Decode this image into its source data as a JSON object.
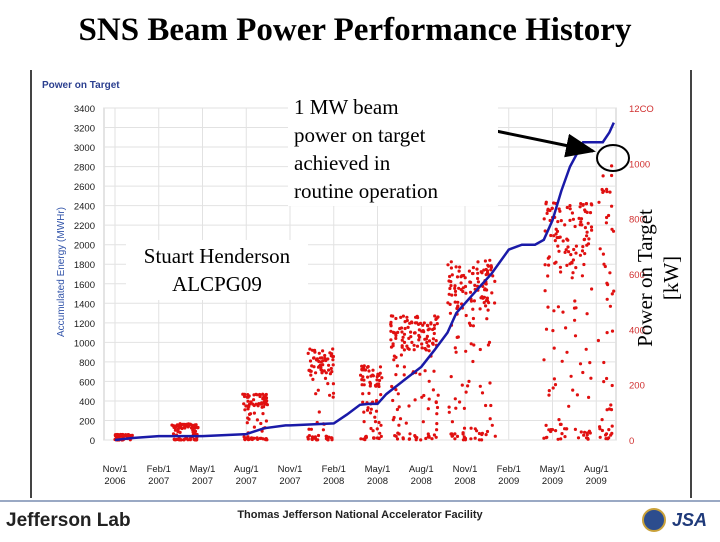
{
  "slide": {
    "title": "SNS Beam Power Performance History",
    "panel_label": "Power on Target",
    "callout_mw": [
      "1 MW beam",
      "power on target",
      "achieved in",
      "routine operation"
    ],
    "callout_author": [
      "Stuart Henderson",
      "ALCPG09"
    ],
    "right_axis_title": [
      "Power on Target",
      "[kW]"
    ]
  },
  "footer": {
    "logo_text": "Jefferson Lab",
    "center_text": "Thomas Jefferson National Accelerator Facility",
    "right_logo_text": "JSA"
  },
  "chart_data": {
    "type": "line",
    "title": "",
    "xlabel": "",
    "ylabel": "Accumulated Energy (MWHr)",
    "y2label": "Power on Target [kW]",
    "x_ticks": [
      "Nov/1 2006",
      "Feb/1 2007",
      "May/1 2007",
      "Aug/1 2007",
      "Nov/1 2007",
      "Feb/1 2008",
      "May/1 2008",
      "Aug/1 2008",
      "Nov/1 2008",
      "Feb/1 2009",
      "May/1 2009",
      "Aug/1 2009"
    ],
    "ylim": [
      0,
      3400
    ],
    "y_ticks": [
      0,
      200,
      400,
      600,
      800,
      1000,
      1200,
      1400,
      1600,
      1800,
      2000,
      2200,
      2400,
      2600,
      2800,
      3000,
      3200,
      3400
    ],
    "y2lim": [
      0,
      1200
    ],
    "y2_ticks": [
      0,
      200,
      400,
      600,
      800,
      1000,
      1200
    ],
    "y2_tick_labels": [
      "0",
      "200",
      "400",
      "600",
      "800",
      "1000",
      "12CO"
    ],
    "grid": true,
    "colors": {
      "accumulated": "#1a1aa8",
      "power": "#e01010",
      "tick_text": "#1a1a1a",
      "axis_title": "#3355aa",
      "right_ticks": "#d03030"
    },
    "series": [
      {
        "name": "",
        "axis": "left",
        "x": [
          0,
          0.4,
          1,
          2,
          3,
          3.4,
          3.9,
          4,
          5,
          5.3,
          5.6,
          5.8,
          6,
          6.2,
          6.6,
          7,
          7.3,
          7.6,
          7.8,
          8,
          8.3,
          8.6,
          9,
          9.3,
          9.6,
          9.8,
          10,
          10.2,
          10.4,
          10.7,
          11,
          11.15,
          11.3,
          11.4
        ],
        "y": [
          0,
          20,
          40,
          40,
          60,
          120,
          150,
          150,
          170,
          260,
          360,
          370,
          370,
          470,
          610,
          750,
          920,
          1100,
          1300,
          1400,
          1550,
          1700,
          1950,
          2000,
          2000,
          2050,
          2250,
          2550,
          2800,
          3050,
          3050,
          3050,
          3150,
          3250
        ]
      },
      {
        "name": "",
        "axis": "right",
        "kind": "scatter",
        "clusters": [
          {
            "x": [
              0,
              0.4
            ],
            "y": [
              0,
              20
            ]
          },
          {
            "x": [
              1.3,
              1.9
            ],
            "y": [
              0,
              60
            ]
          },
          {
            "x": [
              2.9,
              3.5
            ],
            "y": [
              0,
              170
            ]
          },
          {
            "x": [
              4.4,
              5.0
            ],
            "y": [
              0,
              330
            ]
          },
          {
            "x": [
              5.6,
              6.1
            ],
            "y": [
              0,
              270
            ]
          },
          {
            "x": [
              6.3,
              7.4
            ],
            "y": [
              0,
              450
            ]
          },
          {
            "x": [
              7.6,
              8.7
            ],
            "y": [
              0,
              650
            ]
          },
          {
            "x": [
              9.8,
              10.9
            ],
            "y": [
              0,
              860
            ]
          },
          {
            "x": [
              11.05,
              11.4
            ],
            "y": [
              0,
              1020
            ]
          }
        ]
      }
    ]
  }
}
